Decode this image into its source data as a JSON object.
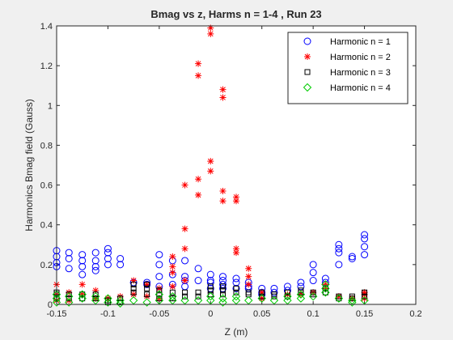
{
  "chart_data": {
    "type": "scatter",
    "title": "Bmag vs z, Harms n = 1-4 , Run 23",
    "xlabel": "Z (m)",
    "ylabel": "Harmonics Bmag field (Gauss)",
    "xlim": [
      -0.15,
      0.2
    ],
    "ylim": [
      0,
      1.4
    ],
    "xticks": [
      -0.15,
      -0.1,
      -0.05,
      0,
      0.05,
      0.1,
      0.15,
      0.2
    ],
    "xtick_labels": [
      "-0.15",
      "-0.1",
      "-0.05",
      "0",
      "0.05",
      "0.1",
      "0.15",
      "0.2"
    ],
    "yticks": [
      0,
      0.2,
      0.4,
      0.6,
      0.8,
      1,
      1.2,
      1.4
    ],
    "ytick_labels": [
      "0",
      "0.2",
      "0.4",
      "0.6",
      "0.8",
      "1",
      "1.2",
      "1.4"
    ],
    "grid": false,
    "legend_position": "top-right",
    "series": [
      {
        "name": "Harmonic n = 1",
        "marker": "circle",
        "color": "#0000ff",
        "points": [
          [
            -0.15,
            0.27
          ],
          [
            -0.15,
            0.24
          ],
          [
            -0.15,
            0.21
          ],
          [
            -0.15,
            0.19
          ],
          [
            -0.138,
            0.26
          ],
          [
            -0.138,
            0.23
          ],
          [
            -0.138,
            0.18
          ],
          [
            -0.125,
            0.25
          ],
          [
            -0.125,
            0.22
          ],
          [
            -0.125,
            0.19
          ],
          [
            -0.125,
            0.15
          ],
          [
            -0.112,
            0.26
          ],
          [
            -0.112,
            0.22
          ],
          [
            -0.112,
            0.19
          ],
          [
            -0.112,
            0.17
          ],
          [
            -0.1,
            0.28
          ],
          [
            -0.1,
            0.26
          ],
          [
            -0.1,
            0.23
          ],
          [
            -0.1,
            0.2
          ],
          [
            -0.088,
            0.23
          ],
          [
            -0.088,
            0.2
          ],
          [
            -0.075,
            0.11
          ],
          [
            -0.062,
            0.11
          ],
          [
            -0.062,
            0.1
          ],
          [
            -0.05,
            0.25
          ],
          [
            -0.05,
            0.2
          ],
          [
            -0.05,
            0.14
          ],
          [
            -0.05,
            0.09
          ],
          [
            -0.037,
            0.22
          ],
          [
            -0.037,
            0.15
          ],
          [
            -0.037,
            0.1
          ],
          [
            -0.025,
            0.22
          ],
          [
            -0.025,
            0.14
          ],
          [
            -0.025,
            0.12
          ],
          [
            -0.025,
            0.09
          ],
          [
            -0.012,
            0.18
          ],
          [
            -0.012,
            0.12
          ],
          [
            0,
            0.15
          ],
          [
            0,
            0.12
          ],
          [
            0,
            0.11
          ],
          [
            0,
            0.08
          ],
          [
            0.012,
            0.14
          ],
          [
            0.012,
            0.12
          ],
          [
            0.012,
            0.1
          ],
          [
            0.012,
            0.08
          ],
          [
            0.025,
            0.13
          ],
          [
            0.025,
            0.11
          ],
          [
            0.025,
            0.08
          ],
          [
            0.037,
            0.11
          ],
          [
            0.037,
            0.09
          ],
          [
            0.037,
            0.08
          ],
          [
            0.05,
            0.08
          ],
          [
            0.05,
            0.06
          ],
          [
            0.05,
            0.05
          ],
          [
            0.062,
            0.08
          ],
          [
            0.062,
            0.06
          ],
          [
            0.075,
            0.09
          ],
          [
            0.075,
            0.07
          ],
          [
            0.088,
            0.11
          ],
          [
            0.088,
            0.09
          ],
          [
            0.1,
            0.2
          ],
          [
            0.1,
            0.16
          ],
          [
            0.1,
            0.12
          ],
          [
            0.112,
            0.13
          ],
          [
            0.112,
            0.11
          ],
          [
            0.125,
            0.3
          ],
          [
            0.125,
            0.28
          ],
          [
            0.125,
            0.26
          ],
          [
            0.125,
            0.2
          ],
          [
            0.138,
            0.24
          ],
          [
            0.138,
            0.23
          ],
          [
            0.15,
            0.35
          ],
          [
            0.15,
            0.33
          ],
          [
            0.15,
            0.29
          ],
          [
            0.15,
            0.25
          ]
        ]
      },
      {
        "name": "Harmonic n = 2",
        "marker": "asterisk",
        "color": "#ff0000",
        "points": [
          [
            -0.15,
            0.1
          ],
          [
            -0.15,
            0.05
          ],
          [
            -0.15,
            0.02
          ],
          [
            -0.138,
            0.06
          ],
          [
            -0.138,
            0.02
          ],
          [
            -0.125,
            0.1
          ],
          [
            -0.125,
            0.05
          ],
          [
            -0.112,
            0.07
          ],
          [
            -0.112,
            0.03
          ],
          [
            -0.1,
            0.03
          ],
          [
            -0.088,
            0.04
          ],
          [
            -0.075,
            0.12
          ],
          [
            -0.075,
            0.05
          ],
          [
            -0.062,
            0.1
          ],
          [
            -0.062,
            0.04
          ],
          [
            -0.05,
            0.08
          ],
          [
            -0.05,
            0.03
          ],
          [
            -0.037,
            0.24
          ],
          [
            -0.037,
            0.19
          ],
          [
            -0.037,
            0.16
          ],
          [
            -0.037,
            0.09
          ],
          [
            -0.025,
            0.6
          ],
          [
            -0.025,
            0.38
          ],
          [
            -0.025,
            0.28
          ],
          [
            -0.025,
            0.12
          ],
          [
            -0.012,
            1.21
          ],
          [
            -0.012,
            1.15
          ],
          [
            -0.012,
            0.63
          ],
          [
            -0.012,
            0.55
          ],
          [
            0,
            1.39
          ],
          [
            0,
            1.36
          ],
          [
            0,
            0.72
          ],
          [
            0,
            0.67
          ],
          [
            0.012,
            1.08
          ],
          [
            0.012,
            1.04
          ],
          [
            0.012,
            0.57
          ],
          [
            0.012,
            0.52
          ],
          [
            0.025,
            0.54
          ],
          [
            0.025,
            0.52
          ],
          [
            0.025,
            0.28
          ],
          [
            0.025,
            0.26
          ],
          [
            0.037,
            0.18
          ],
          [
            0.037,
            0.14
          ],
          [
            0.037,
            0.1
          ],
          [
            0.05,
            0.06
          ],
          [
            0.05,
            0.03
          ],
          [
            0.075,
            0.05
          ],
          [
            0.088,
            0.05
          ],
          [
            0.1,
            0.06
          ],
          [
            0.112,
            0.1
          ],
          [
            0.112,
            0.08
          ],
          [
            0.125,
            0.04
          ],
          [
            0.138,
            0.03
          ],
          [
            0.15,
            0.06
          ],
          [
            0.15,
            0.05
          ],
          [
            0.15,
            0.03
          ]
        ]
      },
      {
        "name": "Harmonic n = 3",
        "marker": "square",
        "color": "#000000",
        "points": [
          [
            -0.15,
            0.06
          ],
          [
            -0.15,
            0.05
          ],
          [
            -0.15,
            0.03
          ],
          [
            -0.138,
            0.05
          ],
          [
            -0.138,
            0.03
          ],
          [
            -0.125,
            0.05
          ],
          [
            -0.125,
            0.03
          ],
          [
            -0.112,
            0.05
          ],
          [
            -0.112,
            0.03
          ],
          [
            -0.1,
            0.02
          ],
          [
            -0.1,
            0.01
          ],
          [
            -0.088,
            0.03
          ],
          [
            -0.088,
            0.01
          ],
          [
            -0.075,
            0.1
          ],
          [
            -0.075,
            0.08
          ],
          [
            -0.075,
            0.06
          ],
          [
            -0.062,
            0.1
          ],
          [
            -0.062,
            0.08
          ],
          [
            -0.062,
            0.05
          ],
          [
            -0.05,
            0.07
          ],
          [
            -0.05,
            0.05
          ],
          [
            -0.05,
            0.03
          ],
          [
            -0.037,
            0.06
          ],
          [
            -0.037,
            0.03
          ],
          [
            -0.025,
            0.06
          ],
          [
            -0.025,
            0.04
          ],
          [
            -0.012,
            0.06
          ],
          [
            -0.012,
            0.04
          ],
          [
            0,
            0.09
          ],
          [
            0,
            0.07
          ],
          [
            0,
            0.05
          ],
          [
            0.012,
            0.09
          ],
          [
            0.012,
            0.07
          ],
          [
            0.012,
            0.05
          ],
          [
            0.025,
            0.08
          ],
          [
            0.025,
            0.06
          ],
          [
            0.037,
            0.06
          ],
          [
            0.037,
            0.05
          ],
          [
            0.05,
            0.06
          ],
          [
            0.05,
            0.04
          ],
          [
            0.062,
            0.05
          ],
          [
            0.062,
            0.04
          ],
          [
            0.075,
            0.06
          ],
          [
            0.075,
            0.04
          ],
          [
            0.088,
            0.07
          ],
          [
            0.088,
            0.06
          ],
          [
            0.1,
            0.06
          ],
          [
            0.1,
            0.05
          ],
          [
            0.112,
            0.08
          ],
          [
            0.112,
            0.06
          ],
          [
            0.125,
            0.04
          ],
          [
            0.125,
            0.03
          ],
          [
            0.138,
            0.04
          ],
          [
            0.138,
            0.03
          ],
          [
            0.15,
            0.06
          ],
          [
            0.15,
            0.04
          ]
        ]
      },
      {
        "name": "Harmonic n = 4",
        "marker": "diamond",
        "color": "#00cc00",
        "points": [
          [
            -0.15,
            0.05
          ],
          [
            -0.15,
            0.03
          ],
          [
            -0.15,
            0.01
          ],
          [
            -0.138,
            0.04
          ],
          [
            -0.138,
            0.01
          ],
          [
            -0.125,
            0.05
          ],
          [
            -0.125,
            0.03
          ],
          [
            -0.112,
            0.04
          ],
          [
            -0.112,
            0.02
          ],
          [
            -0.1,
            0.03
          ],
          [
            -0.1,
            0.01
          ],
          [
            -0.088,
            0.02
          ],
          [
            -0.088,
            0.005
          ],
          [
            -0.075,
            0.02
          ],
          [
            -0.062,
            0.01
          ],
          [
            -0.05,
            0.05
          ],
          [
            -0.05,
            0.02
          ],
          [
            -0.037,
            0.04
          ],
          [
            -0.037,
            0.02
          ],
          [
            -0.025,
            0.02
          ],
          [
            -0.012,
            0.02
          ],
          [
            0,
            0.04
          ],
          [
            0,
            0.02
          ],
          [
            0.012,
            0.03
          ],
          [
            0.012,
            0.01
          ],
          [
            0.025,
            0.04
          ],
          [
            0.025,
            0.02
          ],
          [
            0.037,
            0.02
          ],
          [
            0.05,
            0.03
          ],
          [
            0.062,
            0.02
          ],
          [
            0.075,
            0.04
          ],
          [
            0.075,
            0.02
          ],
          [
            0.088,
            0.05
          ],
          [
            0.088,
            0.03
          ],
          [
            0.1,
            0.04
          ],
          [
            0.112,
            0.1
          ],
          [
            0.112,
            0.08
          ],
          [
            0.112,
            0.06
          ],
          [
            0.125,
            0.03
          ],
          [
            0.138,
            0.02
          ],
          [
            0.138,
            0.01
          ],
          [
            0.15,
            0.02
          ]
        ]
      }
    ]
  }
}
